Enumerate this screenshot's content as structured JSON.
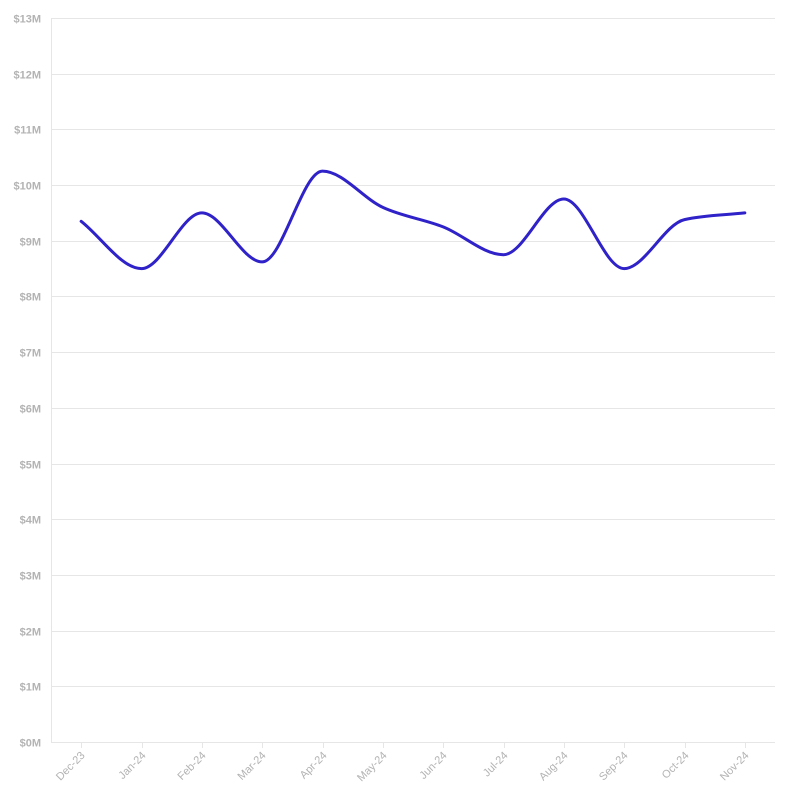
{
  "chart_data": {
    "type": "line",
    "title": "",
    "xlabel": "",
    "ylabel": "",
    "categories": [
      "Dec-23",
      "Jan-24",
      "Feb-24",
      "Mar-24",
      "Apr-24",
      "May-24",
      "Jun-24",
      "Jul-24",
      "Aug-24",
      "Sep-24",
      "Oct-24",
      "Nov-24"
    ],
    "series": [
      {
        "values": [
          9.35,
          8.5,
          9.5,
          8.62,
          10.25,
          9.6,
          9.25,
          8.75,
          9.75,
          8.5,
          9.38,
          9.5
        ],
        "color": "#2f22c8"
      }
    ],
    "ylim": [
      0,
      13
    ],
    "y_ticks": [
      0,
      1,
      2,
      3,
      4,
      5,
      6,
      7,
      8,
      9,
      10,
      11,
      12,
      13
    ],
    "y_tick_labels": [
      "$0M",
      "$1M",
      "$2M",
      "$3M",
      "$4M",
      "$5M",
      "$6M",
      "$7M",
      "$8M",
      "$9M",
      "$10M",
      "$11M",
      "$12M",
      "$13M"
    ],
    "grid": true,
    "legend": "none"
  }
}
